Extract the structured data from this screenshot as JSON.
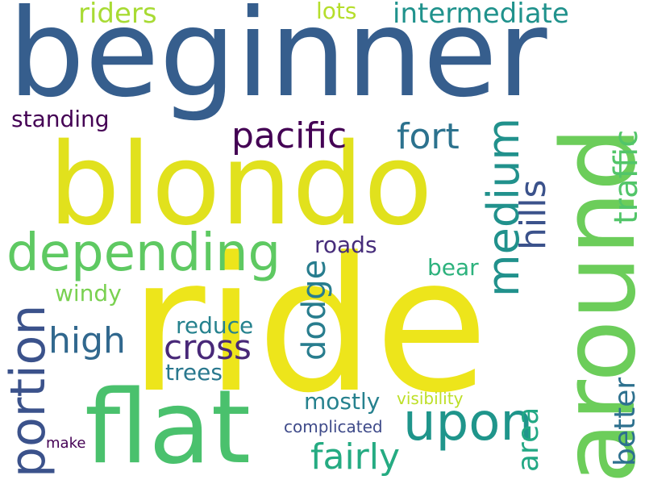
{
  "words": [
    {
      "text": "beginner",
      "color": "#365e8d"
    },
    {
      "text": "ride",
      "color": "#ede51b"
    },
    {
      "text": "blondo",
      "color": "#e1e11d"
    },
    {
      "text": "around",
      "color": "#6ccd5a"
    },
    {
      "text": "flat",
      "color": "#4ac16d"
    },
    {
      "text": "depending",
      "color": "#5ec962"
    },
    {
      "text": "portion",
      "color": "#3b528b"
    },
    {
      "text": "upon",
      "color": "#1f958b"
    },
    {
      "text": "medium",
      "color": "#21918c"
    },
    {
      "text": "pacific",
      "color": "#440154"
    },
    {
      "text": "fort",
      "color": "#2c728e"
    },
    {
      "text": "intermediate",
      "color": "#20928c"
    },
    {
      "text": "riders",
      "color": "#a8db34"
    },
    {
      "text": "lots",
      "color": "#b5de2b"
    },
    {
      "text": "hills",
      "color": "#3b528b"
    },
    {
      "text": "traffic",
      "color": "#52c569"
    },
    {
      "text": "standing",
      "color": "#440154"
    },
    {
      "text": "high",
      "color": "#31688e"
    },
    {
      "text": "cross",
      "color": "#482878"
    },
    {
      "text": "dodge",
      "color": "#287d8e"
    },
    {
      "text": "roads",
      "color": "#472d7b"
    },
    {
      "text": "bear",
      "color": "#2db27d"
    },
    {
      "text": "windy",
      "color": "#7ad151"
    },
    {
      "text": "reduce",
      "color": "#26828e"
    },
    {
      "text": "trees",
      "color": "#2a788e"
    },
    {
      "text": "fairly",
      "color": "#25ab82"
    },
    {
      "text": "mostly",
      "color": "#26818e"
    },
    {
      "text": "visibility",
      "color": "#bddf26"
    },
    {
      "text": "complicated",
      "color": "#3e4a89"
    },
    {
      "text": "make",
      "color": "#440154"
    },
    {
      "text": "area",
      "color": "#22a884"
    },
    {
      "text": "better",
      "color": "#2d708e"
    }
  ]
}
